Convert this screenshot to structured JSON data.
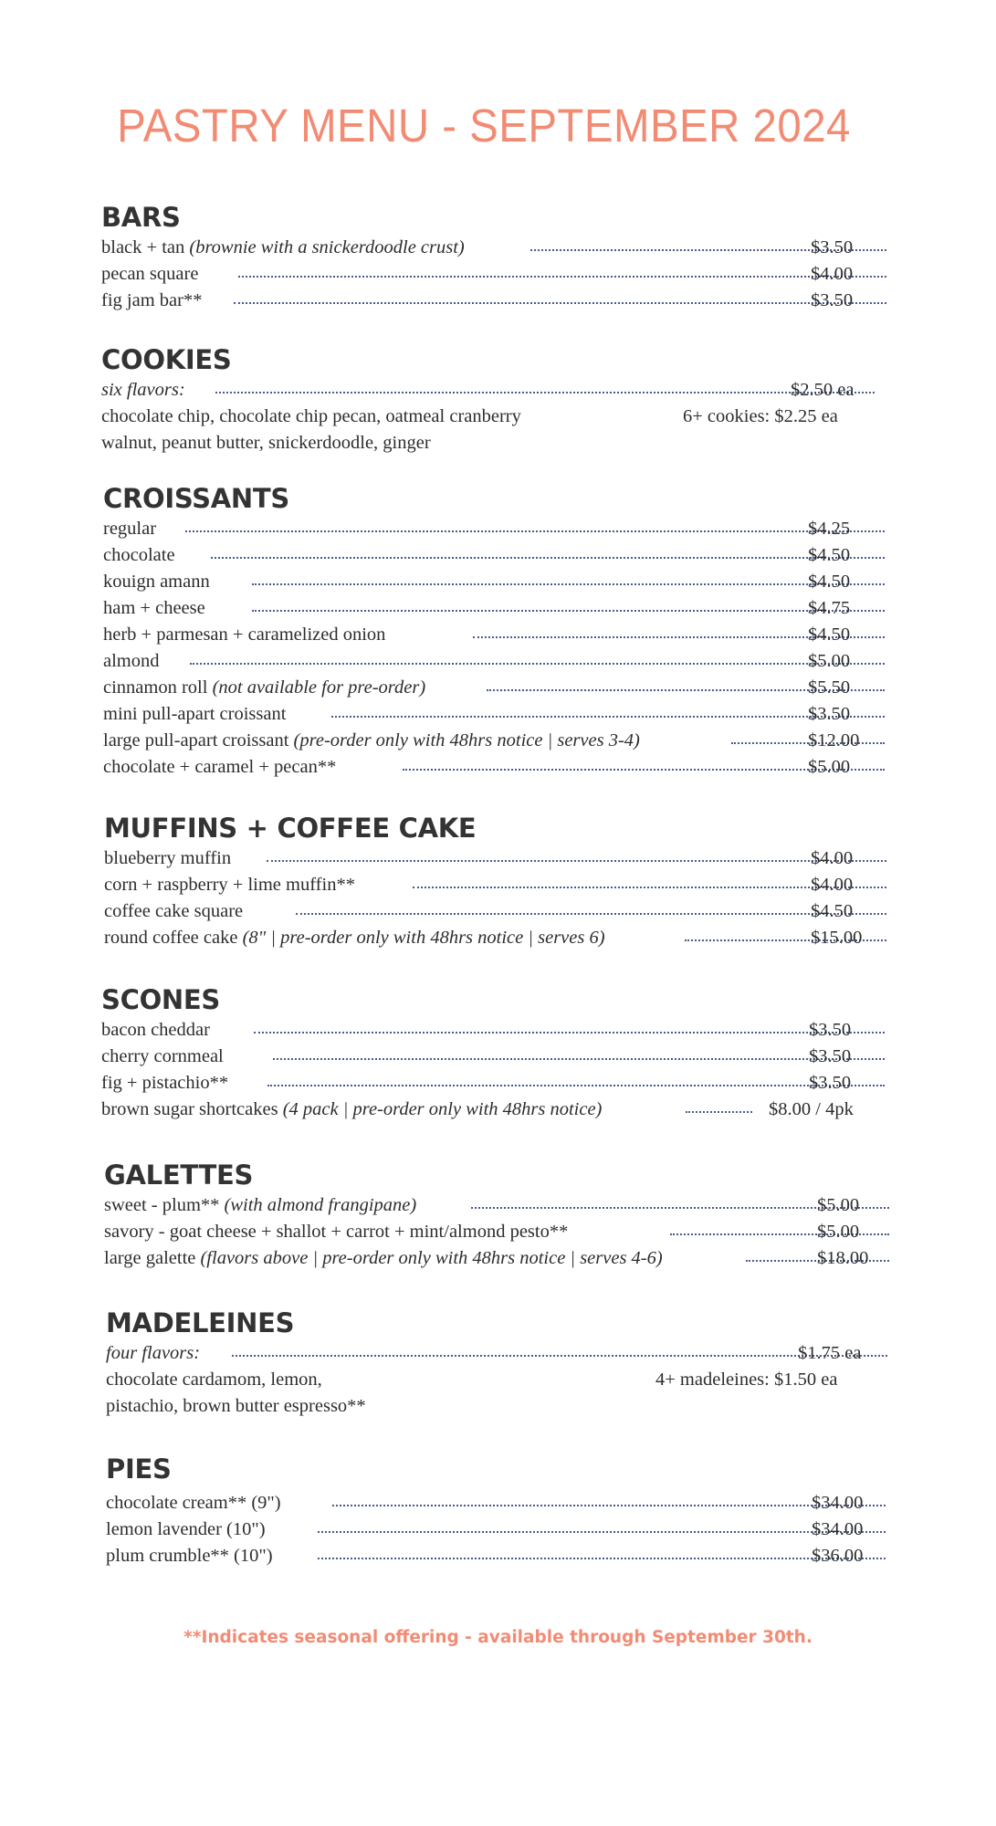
{
  "title": "PASTRY MENU - SEPTEMBER 2024",
  "bars": {
    "heading": "BARS",
    "items": [
      {
        "name": "black + tan ",
        "note": "(brownie with a snickerdoodle crust)",
        "price": "$3.50"
      },
      {
        "name": "pecan square",
        "price": "$4.00"
      },
      {
        "name": "fig jam bar**",
        "price": "$3.50"
      }
    ]
  },
  "cookies": {
    "heading": "COOKIES",
    "flavors_label": "six flavors:",
    "price": "$2.50 ea",
    "flavors_line1": "chocolate chip, chocolate chip pecan, oatmeal cranberry",
    "flavors_line2": "walnut, peanut butter, snickerdoodle, ginger",
    "bulk_price": "6+ cookies: $2.25 ea"
  },
  "croissants": {
    "heading": "CROISSANTS",
    "items": [
      {
        "name": "regular",
        "price": "$4.25"
      },
      {
        "name": "chocolate",
        "price": "$4.50"
      },
      {
        "name": "kouign amann",
        "price": "$4.50"
      },
      {
        "name": "ham + cheese",
        "price": "$4.75"
      },
      {
        "name": "herb + parmesan + caramelized onion",
        "price": "$4.50"
      },
      {
        "name": "almond",
        "price": "$5.00"
      },
      {
        "name": "cinnamon roll ",
        "note": "(not available for pre-order)",
        "price": "$5.50"
      },
      {
        "name": "mini pull-apart croissant",
        "price": "$3.50"
      },
      {
        "name": "large pull-apart croissant ",
        "note": "(pre-order only with 48hrs notice | serves 3-4)",
        "price": "$12.00"
      },
      {
        "name": "chocolate + caramel + pecan**",
        "price": "$5.00"
      }
    ]
  },
  "muffins": {
    "heading": "MUFFINS + COFFEE CAKE",
    "items": [
      {
        "name": "blueberry muffin",
        "price": "$4.00"
      },
      {
        "name": "corn + raspberry + lime muffin**",
        "price": "$4.00"
      },
      {
        "name": "coffee cake square",
        "price": "$4.50"
      },
      {
        "name": "round coffee cake ",
        "note": "(8\" | pre-order only with 48hrs notice | serves 6)",
        "price": "$15.00"
      }
    ]
  },
  "scones": {
    "heading": "SCONES",
    "items": [
      {
        "name": "bacon cheddar",
        "price": "$3.50"
      },
      {
        "name": "cherry cornmeal",
        "price": "$3.50"
      },
      {
        "name": "fig + pistachio**",
        "price": "$3.50"
      },
      {
        "name": "brown sugar shortcakes ",
        "note": "(4 pack | pre-order only with 48hrs notice)",
        "price": "$8.00 / 4pk"
      }
    ]
  },
  "galettes": {
    "heading": "GALETTES",
    "items": [
      {
        "name": "sweet - plum** ",
        "note": "(with almond frangipane)",
        "price": "$5.00"
      },
      {
        "name": "savory - goat cheese + shallot + carrot + mint/almond pesto**",
        "price": "$5.00"
      },
      {
        "name": "large galette ",
        "note": "(flavors above | pre-order only with 48hrs notice | serves 4-6)",
        "price": "$18.00"
      }
    ]
  },
  "madeleines": {
    "heading": "MADELEINES",
    "flavors_label": "four flavors:",
    "price": "$1.75 ea",
    "flavors_line1": "chocolate cardamom, lemon,",
    "flavors_line2": "pistachio, brown butter espresso**",
    "bulk_price": "4+ madeleines: $1.50 ea"
  },
  "pies": {
    "heading": "PIES",
    "items": [
      {
        "name": "chocolate cream** (9\")",
        "price": "$34.00"
      },
      {
        "name": "lemon lavender (10\")",
        "price": "$34.00"
      },
      {
        "name": "plum crumble** (10\")",
        "price": "$36.00"
      }
    ]
  },
  "footnote": "**Indicates seasonal offering - available through September 30th."
}
